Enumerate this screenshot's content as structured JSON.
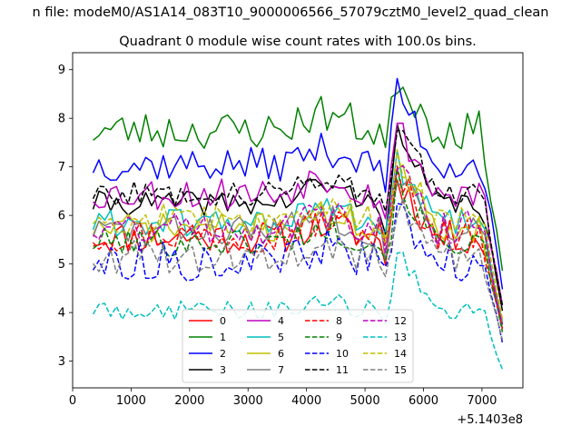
{
  "chart_data": {
    "type": "line",
    "suptitle": "n file: modeM0/AS1A14_083T10_9000006566_57079cztM0_level2_quad_clean",
    "title": "Quadrant 0 module wise count rates with 100.0s bins.",
    "xlabel": "",
    "ylabel": "",
    "x_offset_label": "+5.1403e8",
    "xlim": [
      0,
      7700
    ],
    "ylim": [
      2.45,
      9.35
    ],
    "xticks": [
      0,
      1000,
      2000,
      3000,
      4000,
      5000,
      6000,
      7000
    ],
    "yticks": [
      3,
      4,
      5,
      6,
      7,
      8,
      9
    ],
    "grid": false,
    "legend_position": "lower center",
    "x_start": 350,
    "x_step": 100,
    "points_per_series": 71,
    "series": [
      {
        "name": "0",
        "color": "#ff0000",
        "dash": "solid",
        "shape": "normal",
        "base": 5.55,
        "amp": 0.35,
        "seed": 11
      },
      {
        "name": "1",
        "color": "#008000",
        "dash": "solid",
        "shape": "highest",
        "base": 7.75,
        "amp": 0.4,
        "seed": 23
      },
      {
        "name": "2",
        "color": "#0000ff",
        "dash": "solid",
        "shape": "high",
        "base": 7.05,
        "amp": 0.35,
        "seed": 37
      },
      {
        "name": "3",
        "color": "#000000",
        "dash": "solid",
        "shape": "upper",
        "base": 6.25,
        "amp": 0.25,
        "seed": 41
      },
      {
        "name": "4",
        "color": "#bf00bf",
        "dash": "solid",
        "shape": "upper",
        "base": 6.45,
        "amp": 0.35,
        "seed": 53
      },
      {
        "name": "5",
        "color": "#00bfbf",
        "dash": "solid",
        "shape": "normal",
        "base": 5.85,
        "amp": 0.3,
        "seed": 61
      },
      {
        "name": "6",
        "color": "#bfbf00",
        "dash": "solid",
        "shape": "normal",
        "base": 5.75,
        "amp": 0.3,
        "seed": 71
      },
      {
        "name": "7",
        "color": "#808080",
        "dash": "solid",
        "shape": "normal",
        "base": 5.7,
        "amp": 0.3,
        "seed": 83
      },
      {
        "name": "8",
        "color": "#ff0000",
        "dash": "dashed",
        "shape": "normal",
        "base": 5.6,
        "amp": 0.35,
        "seed": 97
      },
      {
        "name": "9",
        "color": "#008000",
        "dash": "dashed",
        "shape": "normal",
        "base": 5.45,
        "amp": 0.3,
        "seed": 101
      },
      {
        "name": "10",
        "color": "#0000ff",
        "dash": "dashed",
        "shape": "lower",
        "base": 5.05,
        "amp": 0.4,
        "seed": 113
      },
      {
        "name": "11",
        "color": "#000000",
        "dash": "dashed",
        "shape": "upper",
        "base": 6.45,
        "amp": 0.25,
        "seed": 127
      },
      {
        "name": "12",
        "color": "#bf00bf",
        "dash": "dashed",
        "shape": "normal",
        "base": 5.75,
        "amp": 0.35,
        "seed": 131
      },
      {
        "name": "13",
        "color": "#00bfbf",
        "dash": "dashed",
        "shape": "lowest",
        "base": 4.05,
        "amp": 0.2,
        "seed": 149
      },
      {
        "name": "14",
        "color": "#bfbf00",
        "dash": "dashed",
        "shape": "normal",
        "base": 5.95,
        "amp": 0.3,
        "seed": 157
      },
      {
        "name": "15",
        "color": "#808080",
        "dash": "dashed",
        "shape": "lower",
        "base": 5.15,
        "amp": 0.35,
        "seed": 163
      }
    ]
  }
}
